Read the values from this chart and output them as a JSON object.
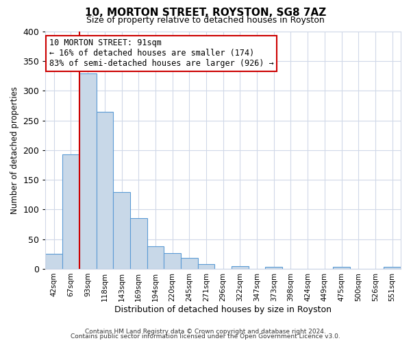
{
  "title": "10, MORTON STREET, ROYSTON, SG8 7AZ",
  "subtitle": "Size of property relative to detached houses in Royston",
  "xlabel": "Distribution of detached houses by size in Royston",
  "ylabel": "Number of detached properties",
  "bar_labels": [
    "42sqm",
    "67sqm",
    "93sqm",
    "118sqm",
    "143sqm",
    "169sqm",
    "194sqm",
    "220sqm",
    "245sqm",
    "271sqm",
    "296sqm",
    "322sqm",
    "347sqm",
    "373sqm",
    "398sqm",
    "424sqm",
    "449sqm",
    "475sqm",
    "500sqm",
    "526sqm",
    "551sqm"
  ],
  "bar_values": [
    25,
    193,
    330,
    265,
    130,
    86,
    38,
    26,
    18,
    8,
    0,
    5,
    0,
    3,
    0,
    0,
    0,
    3,
    0,
    0,
    3
  ],
  "bar_color": "#c8d8e8",
  "bar_edge_color": "#5b9bd5",
  "ylim": [
    0,
    400
  ],
  "yticks": [
    0,
    50,
    100,
    150,
    200,
    250,
    300,
    350,
    400
  ],
  "property_line_x": 1.5,
  "property_line_color": "#cc0000",
  "annotation_line1": "10 MORTON STREET: 91sqm",
  "annotation_line2": "← 16% of detached houses are smaller (174)",
  "annotation_line3": "83% of semi-detached houses are larger (926) →",
  "annotation_box_color": "#ffffff",
  "annotation_box_edge_color": "#cc0000",
  "footer_line1": "Contains HM Land Registry data © Crown copyright and database right 2024.",
  "footer_line2": "Contains public sector information licensed under the Open Government Licence v3.0.",
  "background_color": "#ffffff",
  "grid_color": "#d0d8e8"
}
